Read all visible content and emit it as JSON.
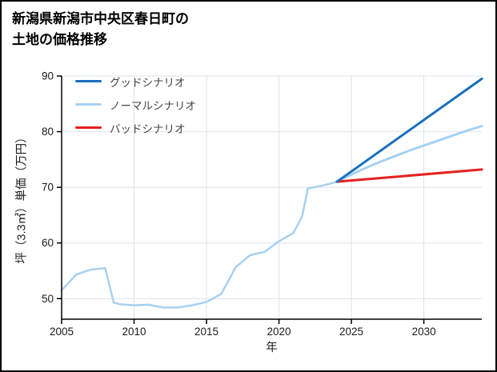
{
  "page": {
    "background": "#ffffff",
    "border_color": "#000000"
  },
  "chart_data": {
    "type": "line",
    "title": "新潟県新潟市中央区春日町の土地の価格推移",
    "title_lines": [
      "新潟県新潟市中央区春日町の",
      "土地の価格推移"
    ],
    "xlabel": "年",
    "ylabel": "坪（3.3㎡）単価（万円）",
    "xlim": [
      2005,
      2034
    ],
    "ylim": [
      46.3,
      90
    ],
    "xticks": [
      2005,
      2010,
      2015,
      2020,
      2025,
      2030
    ],
    "yticks": [
      50,
      60,
      70,
      80,
      90
    ],
    "grid": true,
    "legend_position": "upper-left",
    "colors": {
      "grid": "#dbe4f0",
      "axis": "#000000",
      "tick_label": "#1a1a1a",
      "title": "#000000",
      "legend_text": "#444444"
    },
    "series": [
      {
        "id": "good",
        "name": "グッドシナリオ",
        "color": "#1a6fbe",
        "width": 3,
        "in_legend": true,
        "x": [
          2024,
          2034
        ],
        "y": [
          71,
          89.5
        ]
      },
      {
        "id": "normal",
        "name": "ノーマルシナリオ",
        "color": "#a7d1f2",
        "width": 3,
        "in_legend": true,
        "x": [
          2024,
          2025,
          2026,
          2027,
          2028,
          2029,
          2030,
          2031,
          2032,
          2033,
          2034
        ],
        "y": [
          71,
          72.3,
          73.5,
          74.6,
          75.6,
          76.6,
          77.5,
          78.4,
          79.3,
          80.2,
          81
        ]
      },
      {
        "id": "bad",
        "name": "バッドシナリオ",
        "color": "#e62020",
        "width": 3,
        "in_legend": true,
        "x": [
          2024,
          2034
        ],
        "y": [
          71,
          73.2
        ]
      },
      {
        "id": "historical",
        "name": "historical",
        "color": "#a7d1f2",
        "width": 2.5,
        "in_legend": false,
        "x": [
          2005,
          2006,
          2007,
          2008,
          2008.6,
          2009,
          2010,
          2011,
          2012,
          2013,
          2014,
          2015,
          2016,
          2016.6,
          2017,
          2018,
          2019,
          2020,
          2021,
          2021.6,
          2022,
          2023,
          2024
        ],
        "y": [
          51.5,
          54.3,
          55.2,
          55.5,
          49.3,
          49.0,
          48.8,
          48.9,
          48.4,
          48.4,
          48.8,
          49.4,
          50.8,
          53.6,
          55.6,
          57.8,
          58.4,
          60.3,
          61.8,
          64.8,
          69.8,
          70.3,
          71.0
        ]
      }
    ]
  }
}
